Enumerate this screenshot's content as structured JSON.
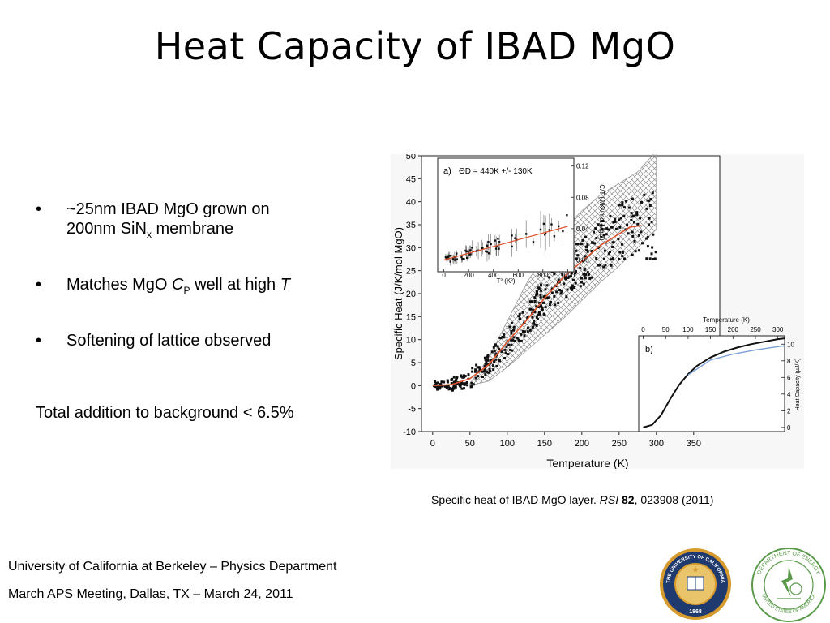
{
  "slide": {
    "title": "Heat Capacity of IBAD MgO",
    "bullets": [
      {
        "pre": "~25nm IBAD MgO grown on",
        "line2": "200nm SiN",
        "sub": "x",
        "post": " membrane"
      },
      {
        "pre": "Matches MgO ",
        "italic": "C",
        "sub": "P",
        "mid": " well at high ",
        "italic2": "T"
      },
      {
        "text": "Softening of lattice observed"
      }
    ],
    "bullet_symbol": "•",
    "plain_text": "Total addition to background < 6.5%",
    "caption": {
      "pre": "Specific heat of IBAD MgO layer.  ",
      "journal": "RSI",
      "volume": " 82",
      "post": ", 023908 (2011)"
    },
    "footer": {
      "line1": "University of California at Berkeley – Physics Department",
      "line2": "March APS Meeting, Dallas, TX – March 24, 2011"
    },
    "logos": {
      "uc_seal": {
        "top": "THE UNIVERSITY OF CALIFORNIA",
        "bottom": "1868",
        "icon": "uc-seal-icon"
      },
      "doe_seal": {
        "top": "DEPARTMENT OF ENERGY",
        "bottom": "UNITED STATES OF AMERICA",
        "icon": "doe-seal-icon"
      }
    }
  },
  "chart_data": [
    {
      "type": "scatter",
      "title": "",
      "xlabel": "Temperature (K)",
      "ylabel": "Specific Heat (J/K/mol MgO)",
      "xlim": [
        -15,
        385
      ],
      "ylim": [
        -10,
        50
      ],
      "xticks": [
        0,
        50,
        100,
        150,
        200,
        250,
        300,
        350
      ],
      "yticks": [
        -10,
        -5,
        0,
        5,
        10,
        15,
        20,
        25,
        30,
        35,
        40,
        45,
        50
      ],
      "fit_line": {
        "x": [
          0,
          25,
          50,
          75,
          100,
          125,
          150,
          175,
          200,
          225,
          250,
          265,
          280
        ],
        "y": [
          0,
          0.2,
          1.5,
          4.5,
          9.5,
          14,
          19,
          23.5,
          27,
          30.5,
          33,
          34.5,
          34.8
        ]
      },
      "band_upper": {
        "x": [
          50,
          75,
          100,
          125,
          150,
          175,
          200,
          225,
          250,
          275,
          300
        ],
        "y": [
          0.5,
          6,
          14,
          22,
          28.5,
          34,
          38,
          41.5,
          44,
          46.5,
          51
        ]
      },
      "band_lower": {
        "x": [
          50,
          75,
          100,
          125,
          150,
          175,
          200,
          225,
          250,
          275,
          300
        ],
        "y": [
          0,
          1,
          4,
          7.5,
          11,
          14.5,
          18.5,
          22.5,
          26,
          30,
          34
        ]
      },
      "colors": {
        "points": "#111111",
        "fit": "#e0532b",
        "band": "#9a9a9a"
      }
    },
    {
      "type": "scatter",
      "panel_label": "a)",
      "annotation": "ΘD = 440K +/- 130K",
      "xlabel": "T² (K²)",
      "ylabel": "C/T (J/K²/mol MgO)",
      "xlim": [
        -50,
        1050
      ],
      "ylim": [
        -0.015,
        0.13
      ],
      "xticks": [
        0,
        200,
        400,
        600,
        800,
        1000
      ],
      "yticks": [
        0.0,
        0.04,
        0.08,
        0.12
      ],
      "fit_line": {
        "x": [
          0,
          1000
        ],
        "y": [
          0.0,
          0.043
        ]
      },
      "colors": {
        "points": "#111111",
        "fit": "#e0532b"
      }
    },
    {
      "type": "line",
      "panel_label": "b)",
      "xlabel": "Temperature (K)",
      "ylabel": "Heat Capacity (µJ/K)",
      "xlim": [
        -10,
        315
      ],
      "ylim": [
        -0.5,
        11
      ],
      "xticks": [
        0,
        50,
        100,
        150,
        200,
        250,
        300
      ],
      "yticks": [
        0,
        2,
        4,
        6,
        8,
        10
      ],
      "series": [
        {
          "x": [
            0,
            20,
            40,
            60,
            80,
            100,
            120,
            150,
            180,
            210,
            240,
            270,
            300,
            315
          ],
          "y": [
            0,
            0.3,
            1.5,
            3.4,
            5.1,
            6.4,
            7.4,
            8.4,
            9.1,
            9.6,
            10.0,
            10.3,
            10.6,
            10.7
          ]
        },
        {
          "x": [
            100,
            150,
            200,
            250,
            300,
            315
          ],
          "y": [
            6.3,
            8.1,
            8.8,
            9.3,
            9.7,
            9.8
          ]
        }
      ],
      "colors": {
        "series": [
          "#111111",
          "#7a9fd6"
        ]
      }
    }
  ]
}
